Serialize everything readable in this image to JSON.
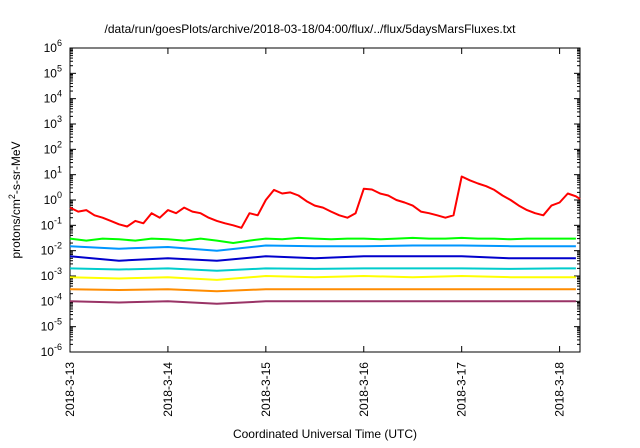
{
  "chart_data": {
    "type": "line",
    "title": "/data/run/goesPlots/archive/2018-03-18/04:00/flux/../flux/5daysMarsFluxes.txt",
    "xlabel": "Coordinated Universal Time (UTC)",
    "ylabel": {
      "prefix": "protons/cm",
      "superscript": "2",
      "suffix": "-s-sr-MeV"
    },
    "y_scale": "log",
    "ylim": [
      1e-06,
      1000000.0
    ],
    "y_ticks": [
      {
        "value": 1e-06,
        "base": "10",
        "exp": "-6"
      },
      {
        "value": 1e-05,
        "base": "10",
        "exp": "-5"
      },
      {
        "value": 0.0001,
        "base": "10",
        "exp": "-4"
      },
      {
        "value": 0.001,
        "base": "10",
        "exp": "-3"
      },
      {
        "value": 0.01,
        "base": "10",
        "exp": "-2"
      },
      {
        "value": 0.1,
        "base": "10",
        "exp": "-1"
      },
      {
        "value": 1.0,
        "base": "10",
        "exp": "0"
      },
      {
        "value": 10.0,
        "base": "10",
        "exp": "1"
      },
      {
        "value": 100.0,
        "base": "10",
        "exp": "2"
      },
      {
        "value": 1000.0,
        "base": "10",
        "exp": "3"
      },
      {
        "value": 10000.0,
        "base": "10",
        "exp": "4"
      },
      {
        "value": 100000.0,
        "base": "10",
        "exp": "5"
      },
      {
        "value": 1000000.0,
        "base": "10",
        "exp": "6"
      }
    ],
    "xlim": [
      "2018-03-13",
      "2018-03-18T05:00"
    ],
    "x_ticks": [
      {
        "value": "2018-03-13",
        "label": "2018-3-13"
      },
      {
        "value": "2018-03-14",
        "label": "2018-3-14"
      },
      {
        "value": "2018-03-15",
        "label": "2018-3-15"
      },
      {
        "value": "2018-03-16",
        "label": "2018-3-16"
      },
      {
        "value": "2018-03-17",
        "label": "2018-3-17"
      },
      {
        "value": "2018-03-18",
        "label": "2018-3-18"
      }
    ],
    "grid": false,
    "series": [
      {
        "color": "#ff0000",
        "x": [
          "2018-03-13T00:00",
          "2018-03-13T02:00",
          "2018-03-13T04:00",
          "2018-03-13T06:00",
          "2018-03-13T08:00",
          "2018-03-13T10:00",
          "2018-03-13T12:00",
          "2018-03-13T14:00",
          "2018-03-13T16:00",
          "2018-03-13T18:00",
          "2018-03-13T20:00",
          "2018-03-13T22:00",
          "2018-03-14T00:00",
          "2018-03-14T02:00",
          "2018-03-14T04:00",
          "2018-03-14T06:00",
          "2018-03-14T08:00",
          "2018-03-14T10:00",
          "2018-03-14T12:00",
          "2018-03-14T14:00",
          "2018-03-14T16:00",
          "2018-03-14T18:00",
          "2018-03-14T20:00",
          "2018-03-14T22:00",
          "2018-03-15T00:00",
          "2018-03-15T02:00",
          "2018-03-15T04:00",
          "2018-03-15T06:00",
          "2018-03-15T08:00",
          "2018-03-15T10:00",
          "2018-03-15T12:00",
          "2018-03-15T14:00",
          "2018-03-15T16:00",
          "2018-03-15T18:00",
          "2018-03-15T20:00",
          "2018-03-15T22:00",
          "2018-03-16T00:00",
          "2018-03-16T02:00",
          "2018-03-16T04:00",
          "2018-03-16T06:00",
          "2018-03-16T08:00",
          "2018-03-16T10:00",
          "2018-03-16T12:00",
          "2018-03-16T14:00",
          "2018-03-16T16:00",
          "2018-03-16T18:00",
          "2018-03-16T20:00",
          "2018-03-16T22:00",
          "2018-03-17T00:00",
          "2018-03-17T02:00",
          "2018-03-17T04:00",
          "2018-03-17T06:00",
          "2018-03-17T08:00",
          "2018-03-17T10:00",
          "2018-03-17T12:00",
          "2018-03-17T14:00",
          "2018-03-17T16:00",
          "2018-03-17T18:00",
          "2018-03-17T20:00",
          "2018-03-17T22:00",
          "2018-03-18T00:00",
          "2018-03-18T02:00",
          "2018-03-18T04:00",
          "2018-03-18T05:00"
        ],
        "y": [
          0.5,
          0.35,
          0.4,
          0.25,
          0.2,
          0.15,
          0.11,
          0.09,
          0.15,
          0.12,
          0.3,
          0.2,
          0.4,
          0.3,
          0.5,
          0.35,
          0.3,
          0.2,
          0.15,
          0.12,
          0.1,
          0.08,
          0.3,
          0.25,
          1.0,
          2.5,
          1.8,
          2.0,
          1.5,
          0.9,
          0.6,
          0.5,
          0.35,
          0.25,
          0.2,
          0.3,
          2.8,
          2.6,
          1.8,
          1.5,
          1.0,
          0.8,
          0.6,
          0.35,
          0.3,
          0.25,
          0.2,
          0.25,
          8.5,
          6.0,
          4.5,
          3.5,
          2.5,
          1.5,
          1.0,
          0.6,
          0.4,
          0.3,
          0.25,
          0.6,
          0.8,
          1.8,
          1.4,
          1.1
        ]
      },
      {
        "color": "#00ff00",
        "x": [
          "2018-03-13T00:00",
          "2018-03-13T04:00",
          "2018-03-13T08:00",
          "2018-03-13T12:00",
          "2018-03-13T16:00",
          "2018-03-13T20:00",
          "2018-03-14T00:00",
          "2018-03-14T04:00",
          "2018-03-14T08:00",
          "2018-03-14T12:00",
          "2018-03-14T16:00",
          "2018-03-14T20:00",
          "2018-03-15T00:00",
          "2018-03-15T04:00",
          "2018-03-15T08:00",
          "2018-03-15T12:00",
          "2018-03-15T16:00",
          "2018-03-15T20:00",
          "2018-03-16T00:00",
          "2018-03-16T04:00",
          "2018-03-16T08:00",
          "2018-03-16T12:00",
          "2018-03-16T16:00",
          "2018-03-16T20:00",
          "2018-03-17T00:00",
          "2018-03-17T04:00",
          "2018-03-17T08:00",
          "2018-03-17T12:00",
          "2018-03-17T16:00",
          "2018-03-17T20:00",
          "2018-03-18T00:00",
          "2018-03-18T04:00"
        ],
        "y": [
          0.03,
          0.025,
          0.03,
          0.028,
          0.025,
          0.03,
          0.028,
          0.025,
          0.03,
          0.025,
          0.02,
          0.025,
          0.03,
          0.028,
          0.032,
          0.03,
          0.028,
          0.03,
          0.03,
          0.028,
          0.03,
          0.032,
          0.03,
          0.03,
          0.032,
          0.03,
          0.03,
          0.028,
          0.03,
          0.03,
          0.03,
          0.03
        ]
      },
      {
        "color": "#0096ff",
        "x": [
          "2018-03-13T00:00",
          "2018-03-13T12:00",
          "2018-03-14T00:00",
          "2018-03-14T12:00",
          "2018-03-15T00:00",
          "2018-03-15T12:00",
          "2018-03-16T00:00",
          "2018-03-16T12:00",
          "2018-03-17T00:00",
          "2018-03-17T12:00",
          "2018-03-18T00:00",
          "2018-03-18T04:00"
        ],
        "y": [
          0.015,
          0.012,
          0.014,
          0.01,
          0.016,
          0.015,
          0.015,
          0.016,
          0.016,
          0.015,
          0.015,
          0.015
        ]
      },
      {
        "color": "#0000cc",
        "x": [
          "2018-03-13T00:00",
          "2018-03-13T12:00",
          "2018-03-14T00:00",
          "2018-03-14T12:00",
          "2018-03-15T00:00",
          "2018-03-15T12:00",
          "2018-03-16T00:00",
          "2018-03-16T12:00",
          "2018-03-17T00:00",
          "2018-03-17T12:00",
          "2018-03-18T00:00",
          "2018-03-18T04:00"
        ],
        "y": [
          0.006,
          0.004,
          0.005,
          0.004,
          0.006,
          0.005,
          0.006,
          0.006,
          0.006,
          0.005,
          0.005,
          0.005
        ]
      },
      {
        "color": "#00cccc",
        "x": [
          "2018-03-13T00:00",
          "2018-03-13T12:00",
          "2018-03-14T00:00",
          "2018-03-14T12:00",
          "2018-03-15T00:00",
          "2018-03-15T12:00",
          "2018-03-16T00:00",
          "2018-03-16T12:00",
          "2018-03-17T00:00",
          "2018-03-17T12:00",
          "2018-03-18T00:00",
          "2018-03-18T04:00"
        ],
        "y": [
          0.002,
          0.0018,
          0.002,
          0.0016,
          0.002,
          0.0019,
          0.002,
          0.002,
          0.002,
          0.0019,
          0.002,
          0.002
        ]
      },
      {
        "color": "#ffff00",
        "x": [
          "2018-03-13T00:00",
          "2018-03-13T12:00",
          "2018-03-14T00:00",
          "2018-03-14T12:00",
          "2018-03-15T00:00",
          "2018-03-15T12:00",
          "2018-03-16T00:00",
          "2018-03-16T12:00",
          "2018-03-17T00:00",
          "2018-03-17T12:00",
          "2018-03-18T00:00",
          "2018-03-18T04:00"
        ],
        "y": [
          0.0009,
          0.0008,
          0.0009,
          0.0007,
          0.001,
          0.0009,
          0.001,
          0.0009,
          0.001,
          0.0009,
          0.0009,
          0.0009
        ]
      },
      {
        "color": "#ff8c00",
        "x": [
          "2018-03-13T00:00",
          "2018-03-13T12:00",
          "2018-03-14T00:00",
          "2018-03-14T12:00",
          "2018-03-15T00:00",
          "2018-03-15T12:00",
          "2018-03-16T00:00",
          "2018-03-16T12:00",
          "2018-03-17T00:00",
          "2018-03-17T12:00",
          "2018-03-18T00:00",
          "2018-03-18T04:00"
        ],
        "y": [
          0.0003,
          0.00028,
          0.0003,
          0.00025,
          0.0003,
          0.0003,
          0.0003,
          0.0003,
          0.0003,
          0.0003,
          0.0003,
          0.0003
        ]
      },
      {
        "color": "#993366",
        "x": [
          "2018-03-13T00:00",
          "2018-03-13T12:00",
          "2018-03-14T00:00",
          "2018-03-14T12:00",
          "2018-03-15T00:00",
          "2018-03-15T12:00",
          "2018-03-16T00:00",
          "2018-03-16T12:00",
          "2018-03-17T00:00",
          "2018-03-17T12:00",
          "2018-03-18T00:00",
          "2018-03-18T04:00"
        ],
        "y": [
          0.0001,
          9e-05,
          0.0001,
          8e-05,
          0.0001,
          0.0001,
          0.0001,
          0.0001,
          0.0001,
          0.0001,
          0.0001,
          0.0001
        ]
      }
    ]
  }
}
